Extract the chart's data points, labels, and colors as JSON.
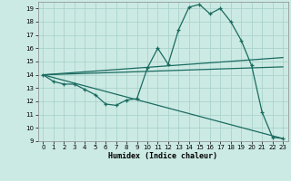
{
  "xlabel": "Humidex (Indice chaleur)",
  "bg_color": "#cceae4",
  "grid_color": "#aad4cc",
  "line_color": "#1a6b60",
  "xlim": [
    -0.5,
    23.5
  ],
  "ylim": [
    9,
    19.5
  ],
  "yticks": [
    9,
    10,
    11,
    12,
    13,
    14,
    15,
    16,
    17,
    18,
    19
  ],
  "xticks": [
    0,
    1,
    2,
    3,
    4,
    5,
    6,
    7,
    8,
    9,
    10,
    11,
    12,
    13,
    14,
    15,
    16,
    17,
    18,
    19,
    20,
    21,
    22,
    23
  ],
  "series": {
    "main": {
      "x": [
        0,
        1,
        2,
        3,
        4,
        5,
        6,
        7,
        8,
        9,
        10,
        11,
        12,
        13,
        14,
        15,
        16,
        17,
        18,
        19,
        20,
        21,
        22,
        23
      ],
      "y": [
        14.0,
        13.5,
        13.3,
        13.3,
        12.9,
        12.5,
        11.8,
        11.7,
        12.1,
        12.2,
        14.5,
        16.0,
        14.8,
        17.4,
        19.1,
        19.3,
        18.6,
        19.0,
        18.0,
        16.6,
        14.7,
        11.2,
        9.3,
        9.2
      ]
    },
    "line1": {
      "x": [
        0,
        23
      ],
      "y": [
        14.0,
        15.3
      ]
    },
    "line2": {
      "x": [
        0,
        23
      ],
      "y": [
        14.0,
        14.6
      ]
    },
    "line3": {
      "x": [
        0,
        23
      ],
      "y": [
        14.0,
        9.2
      ]
    }
  }
}
